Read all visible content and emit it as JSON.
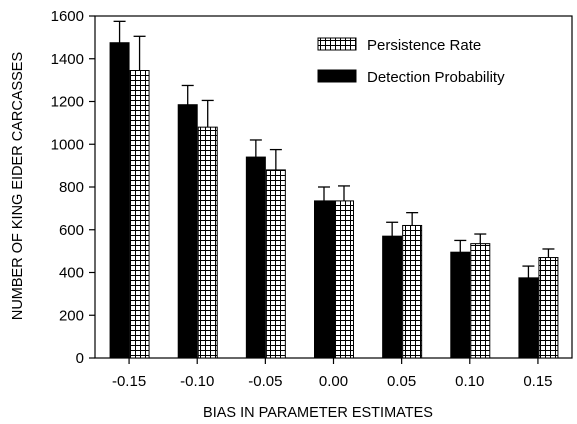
{
  "chart_data": {
    "type": "bar",
    "xlabel": "BIAS IN PARAMETER ESTIMATES",
    "ylabel": "NUMBER OF KING EIDER CARCASSES",
    "categories": [
      "-0.15",
      "-0.10",
      "-0.05",
      "0.00",
      "0.05",
      "0.10",
      "0.15"
    ],
    "ylim": [
      0,
      1600
    ],
    "yticks": [
      0,
      200,
      400,
      600,
      800,
      1000,
      1200,
      1400,
      1600
    ],
    "ytick_labels": [
      "0",
      "200",
      "400",
      "600",
      "800",
      "1000",
      "1200",
      "1400",
      "1600"
    ],
    "grid": false,
    "legend_position": "top-right",
    "series": [
      {
        "name": "Detection Probability",
        "fill": "solid",
        "color": "#000000",
        "values": [
          1475,
          1185,
          940,
          735,
          570,
          495,
          375
        ],
        "errors": [
          100,
          90,
          80,
          65,
          65,
          55,
          55
        ]
      },
      {
        "name": "Persistence Rate",
        "fill": "grid-hatch",
        "color": "#ffffff",
        "values": [
          1345,
          1080,
          880,
          735,
          620,
          535,
          470
        ],
        "errors": [
          160,
          125,
          95,
          70,
          60,
          45,
          40
        ]
      }
    ],
    "legend_order": [
      "Persistence Rate",
      "Detection Probability"
    ]
  }
}
